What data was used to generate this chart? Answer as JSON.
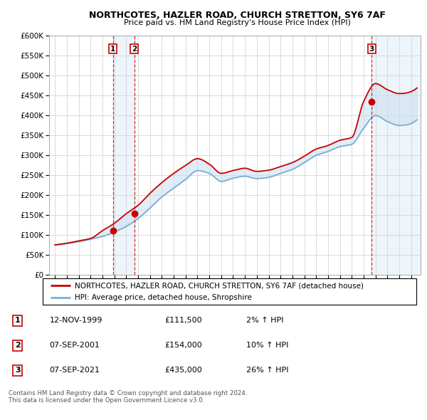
{
  "title1": "NORTHCOTES, HAZLER ROAD, CHURCH STRETTON, SY6 7AF",
  "title2": "Price paid vs. HM Land Registry's House Price Index (HPI)",
  "ylabel_ticks": [
    "£0",
    "£50K",
    "£100K",
    "£150K",
    "£200K",
    "£250K",
    "£300K",
    "£350K",
    "£400K",
    "£450K",
    "£500K",
    "£550K",
    "£600K"
  ],
  "ytick_values": [
    0,
    50000,
    100000,
    150000,
    200000,
    250000,
    300000,
    350000,
    400000,
    450000,
    500000,
    550000,
    600000
  ],
  "xlim_start": 1994.5,
  "xlim_end": 2025.8,
  "ylim_min": 0,
  "ylim_max": 600000,
  "sale_dates": [
    1999.87,
    2001.68,
    2021.68
  ],
  "sale_prices": [
    111500,
    154000,
    435000
  ],
  "sale_labels": [
    "1",
    "2",
    "3"
  ],
  "legend_line1": "NORTHCOTES, HAZLER ROAD, CHURCH STRETTON, SY6 7AF (detached house)",
  "legend_line2": "HPI: Average price, detached house, Shropshire",
  "table_rows": [
    [
      "1",
      "12-NOV-1999",
      "£111,500",
      "2% ↑ HPI"
    ],
    [
      "2",
      "07-SEP-2001",
      "£154,000",
      "10% ↑ HPI"
    ],
    [
      "3",
      "07-SEP-2021",
      "£435,000",
      "26% ↑ HPI"
    ]
  ],
  "footer": "Contains HM Land Registry data © Crown copyright and database right 2024.\nThis data is licensed under the Open Government Licence v3.0.",
  "line_color_red": "#cc0000",
  "line_color_blue": "#7aafd4",
  "shade_color": "#c8dff0",
  "grid_color": "#cccccc",
  "sale_marker_color": "#cc0000",
  "hpi_keypoints_x": [
    1995,
    1996,
    1997,
    1998,
    1999,
    2000,
    2001,
    2002,
    2003,
    2004,
    2005,
    2006,
    2007,
    2008,
    2009,
    2010,
    2011,
    2012,
    2013,
    2014,
    2015,
    2016,
    2017,
    2018,
    2019,
    2020,
    2021,
    2022,
    2023,
    2024,
    2025
  ],
  "hpi_keypoints_y": [
    75000,
    79000,
    84000,
    90000,
    97000,
    108000,
    122000,
    142000,
    168000,
    196000,
    218000,
    240000,
    262000,
    255000,
    235000,
    243000,
    248000,
    242000,
    245000,
    255000,
    265000,
    282000,
    300000,
    310000,
    322000,
    328000,
    368000,
    400000,
    385000,
    375000,
    380000
  ],
  "prop_keypoints_x": [
    1995,
    1996,
    1997,
    1998,
    1999,
    2000,
    2001,
    2002,
    2003,
    2004,
    2005,
    2006,
    2007,
    2008,
    2009,
    2010,
    2011,
    2012,
    2013,
    2014,
    2015,
    2016,
    2017,
    2018,
    2019,
    2020,
    2021,
    2022,
    2023,
    2024,
    2025
  ],
  "prop_keypoints_y": [
    76000,
    80000,
    86000,
    92000,
    111500,
    130000,
    154000,
    175000,
    205000,
    232000,
    255000,
    275000,
    292000,
    278000,
    255000,
    262000,
    268000,
    260000,
    263000,
    272000,
    282000,
    298000,
    316000,
    325000,
    338000,
    345000,
    435000,
    480000,
    465000,
    455000,
    460000
  ]
}
